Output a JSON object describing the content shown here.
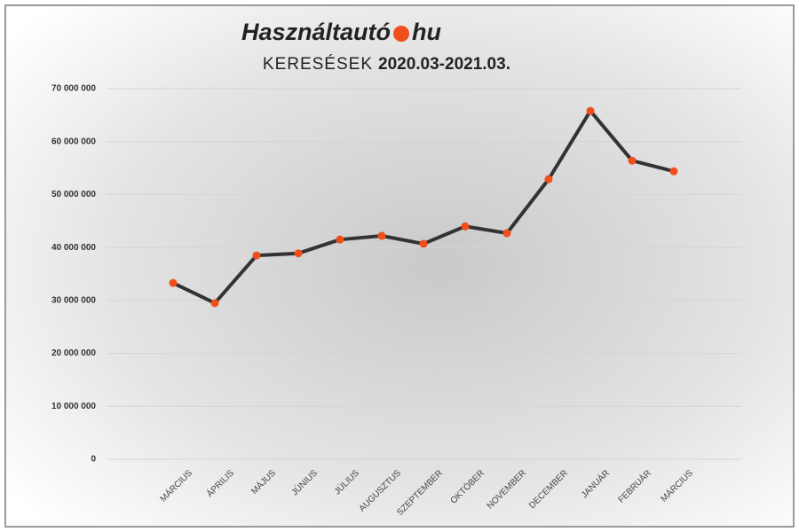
{
  "chart_data": {
    "type": "line",
    "logo": {
      "name": "Használtautó",
      "suffix": "hu",
      "dot_color": "#f04e1a"
    },
    "title": "KERESÉSEK",
    "subtitle": "2020.03-2021.03.",
    "categories": [
      "MÁRCIUS",
      "ÁPRILIS",
      "MÁJUS",
      "JÚNIUS",
      "JÚLIUS",
      "AUGUSZTUS",
      "SZEPTEMBER",
      "OKTÓBER",
      "NOVEMBER",
      "DECEMBER",
      "JANUÁR",
      "FEBRUÁR",
      "MÁRCIUS"
    ],
    "values": [
      33300000,
      29500000,
      38500000,
      38900000,
      41500000,
      42200000,
      40700000,
      44000000,
      42700000,
      52900000,
      65800000,
      56400000,
      54400000
    ],
    "color": "#333333",
    "marker_color": "#f04e1a",
    "ylim": [
      0,
      70000000
    ],
    "yticks": [
      0,
      {
        "value": 10000000,
        "label": "10 000 000"
      },
      {
        "value": 20000000,
        "label": "20 000 000"
      },
      {
        "value": 30000000,
        "label": "30 000 000"
      },
      {
        "value": 40000000,
        "label": "40 000 000"
      },
      {
        "value": 50000000,
        "label": "50 000 000"
      },
      {
        "value": 60000000,
        "label": "60 000 000"
      },
      {
        "value": 70000000,
        "label": "70 000 000"
      }
    ],
    "grid": true
  }
}
